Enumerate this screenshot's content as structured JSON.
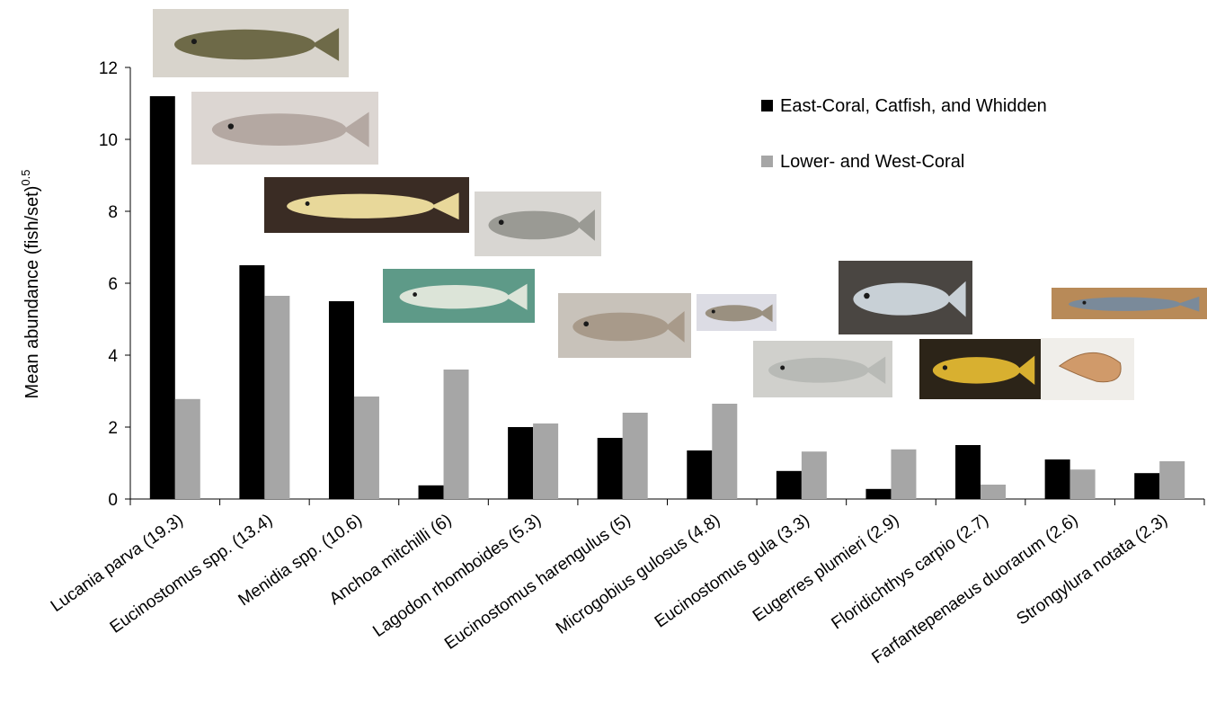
{
  "chart_data": {
    "type": "bar",
    "title": "",
    "xlabel": "",
    "ylabel": "Mean abundance (fish/set)",
    "ylabel_superscript": "0.5",
    "ylim": [
      0,
      12
    ],
    "yticks": [
      "0",
      "2",
      "4",
      "6",
      "8",
      "10",
      "12"
    ],
    "grid": false,
    "legend_position": "top-right",
    "categories": [
      "Lucania parva (19.3)",
      "Eucinostomus spp. (13.4)",
      "Menidia spp. (10.6)",
      "Anchoa mitchilli (6)",
      "Lagodon rhomboides (5.3)",
      "Eucinostomus harengulus (5)",
      "Microgobius gulosus (4.8)",
      "Eucinostomus gula (3.3)",
      "Eugerres plumieri (2.9)",
      "Floridichthys carpio (2.7)",
      "Farfantepenaeus duorarum (2.6)",
      "Strongylura notata (2.3)"
    ],
    "series": [
      {
        "name": "East-Coral, Catfish, and Whidden",
        "color": "#000000",
        "values": [
          11.2,
          6.5,
          5.5,
          0.38,
          2.0,
          1.7,
          1.35,
          0.78,
          0.28,
          1.5,
          1.1,
          0.72
        ]
      },
      {
        "name": "Lower- and West-Coral",
        "color": "#a6a6a6",
        "values": [
          2.78,
          5.65,
          2.85,
          3.6,
          2.1,
          2.4,
          2.65,
          1.32,
          1.38,
          0.4,
          0.82,
          1.05
        ]
      }
    ],
    "photos": [
      {
        "icon": "fish-photo-lucania-parva",
        "bg": "#d8d4cc",
        "body": "#6e6a48"
      },
      {
        "icon": "fish-photo-eucinostomus",
        "bg": "#dcd6d2",
        "body": "#b4a8a2"
      },
      {
        "icon": "fish-photo-menidia",
        "bg": "#3a2c24",
        "body": "#e8d89a"
      },
      {
        "icon": "fish-photo-lagodon",
        "bg": "#d8d6d2",
        "body": "#9a9a94"
      },
      {
        "icon": "fish-photo-anchoa",
        "bg": "#5e9a88",
        "body": "#dce4d8"
      },
      {
        "icon": "fish-photo-eucinostomus-harengulus",
        "bg": "#c8c2ba",
        "body": "#a89a8a"
      },
      {
        "icon": "fish-photo-microgobius",
        "bg": "#dcdce4",
        "body": "#9a9080"
      },
      {
        "icon": "fish-photo-eugerres",
        "bg": "#4a4642",
        "body": "#c8d0d6"
      },
      {
        "icon": "fish-photo-eucinostomus-gula",
        "bg": "#d0d0cc",
        "body": "#b8bab6"
      },
      {
        "icon": "fish-photo-floridichthys",
        "bg": "#2c2418",
        "body": "#d8b030"
      },
      {
        "icon": "shrimp-photo-farfantepenaeus",
        "bg": "#f0eeea",
        "body": "#d09a6a"
      },
      {
        "icon": "fish-photo-strongylura",
        "bg": "#b88a58",
        "body": "#7a8a9a"
      }
    ]
  }
}
